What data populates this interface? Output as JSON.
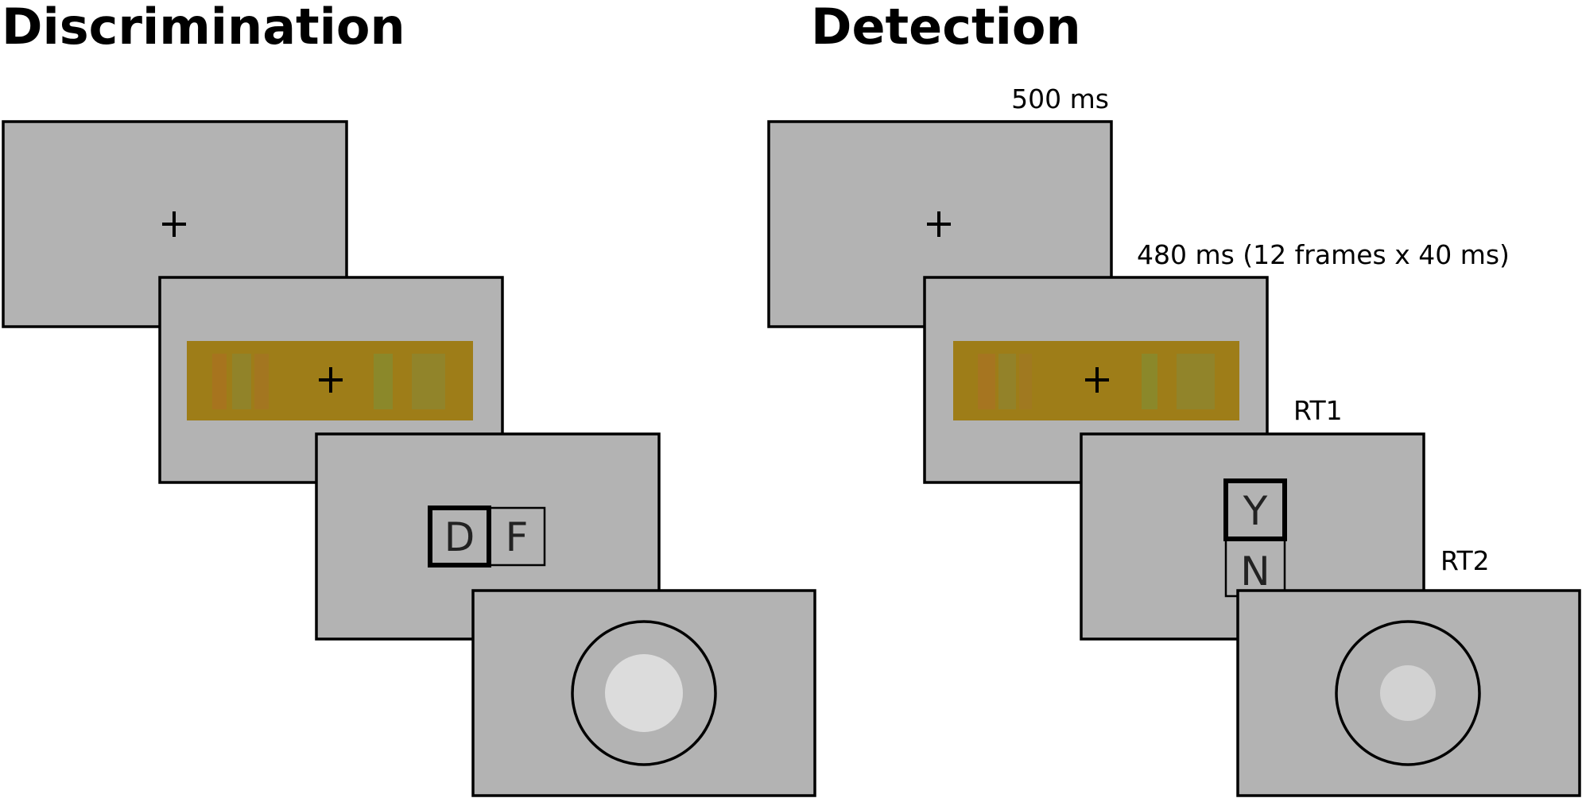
{
  "discrimination": {
    "title": "Discrimination",
    "response_keys": [
      "D",
      "F"
    ]
  },
  "detection": {
    "title": "Detection",
    "response_keys": [
      "Y",
      "N"
    ],
    "timings": {
      "fixation": "500 ms",
      "stimulus": "480 ms (12 frames x 40 ms)",
      "response_1": "RT1",
      "response_2": "RT2"
    }
  },
  "colors": {
    "screen_gray": "#b3b3b3",
    "stimulus_band": "#9e7d18",
    "target_disc_discrimination": "#dcdcdc",
    "target_disc_detection": "#d2d2d2"
  }
}
